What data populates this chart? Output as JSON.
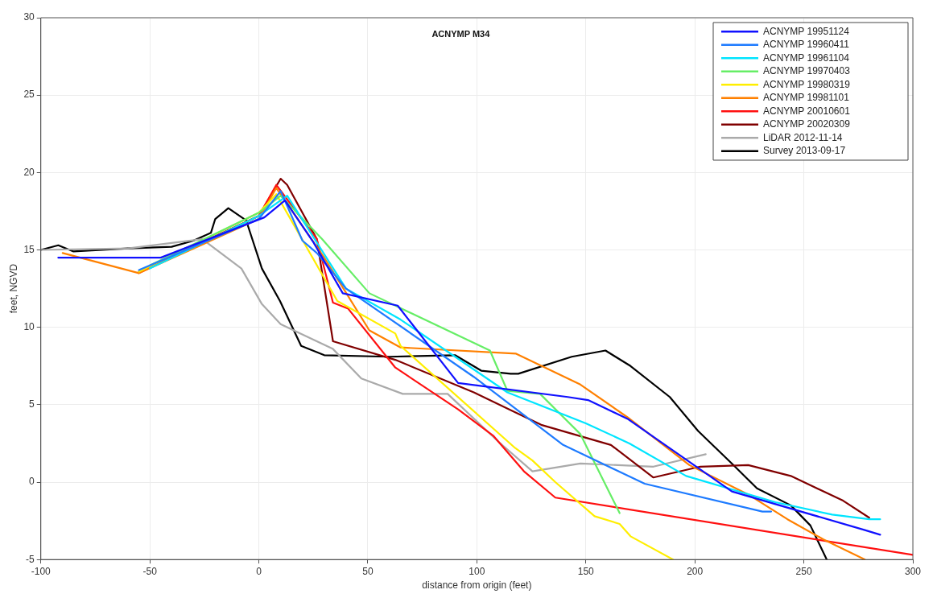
{
  "chart_data": {
    "type": "line",
    "title": "ACNYMP M34",
    "xlabel": "distance from origin (feet)",
    "ylabel": "feet, NGVD",
    "xlim": [
      -100,
      300
    ],
    "xticks": [
      -100,
      -50,
      0,
      50,
      100,
      150,
      200,
      250,
      300
    ],
    "ylim": [
      -5,
      30
    ],
    "yticks": [
      -5,
      0,
      5,
      10,
      15,
      20,
      25,
      30
    ],
    "grid": true,
    "legend": "top right",
    "marker": "none",
    "line_style": "solid",
    "series": [
      {
        "name": "ACNYMP 19951124",
        "color": "#1010ff",
        "x": [
          -92,
          -45,
          2.5,
          12,
          25,
          38.5,
          63.7,
          91.4,
          141.7,
          151,
          169,
          217,
          278,
          285
        ],
        "values": [
          14.5,
          14.5,
          17.1,
          18.2,
          15.5,
          12.2,
          11.4,
          6.4,
          5.5,
          5.3,
          4.1,
          -0.6,
          -3.1,
          -3.4
        ]
      },
      {
        "name": "ACNYMP 19960411",
        "color": "#1e7bff",
        "x": [
          -55,
          0,
          10,
          20,
          26.6,
          40,
          98.6,
          139.6,
          177,
          231,
          235
        ],
        "values": [
          13.7,
          17,
          18.8,
          15.6,
          14.8,
          12.5,
          6.8,
          2.4,
          -0.1,
          -1.9,
          -1.9
        ]
      },
      {
        "name": "ACNYMP 19961104",
        "color": "#00e5ff",
        "x": [
          -50,
          0,
          13,
          40,
          65,
          114,
          150,
          170,
          196,
          237,
          263,
          280,
          285
        ],
        "values": [
          13.8,
          17.2,
          18.5,
          12.5,
          10.5,
          5.8,
          3.8,
          2.5,
          0.4,
          -1.3,
          -2.1,
          -2.4,
          -2.4
        ]
      },
      {
        "name": "ACNYMP 19970403",
        "color": "#66ee66",
        "x": [
          -50,
          0,
          10,
          29,
          50.7,
          106,
          114,
          129,
          147.5,
          165.5
        ],
        "values": [
          14,
          17.4,
          18.5,
          15.7,
          12.2,
          8.5,
          5.9,
          5.7,
          3.1,
          -2.0
        ]
      },
      {
        "name": "ACNYMP 19980319",
        "color": "#ffee00",
        "x": [
          -55,
          0,
          8,
          36,
          62.6,
          65,
          117.6,
          125.5,
          136,
          154,
          165.5,
          170.5,
          190
        ],
        "values": [
          13.6,
          17.4,
          18.6,
          11.7,
          9.6,
          8.8,
          2.2,
          1.4,
          0.0,
          -2.2,
          -2.7,
          -3.5,
          -5
        ]
      },
      {
        "name": "ACNYMP 19981101",
        "color": "#ff8000",
        "x": [
          -90,
          -55,
          0,
          8,
          30,
          50.7,
          65,
          118,
          147.5,
          169,
          197.5,
          224.5,
          242.5,
          259,
          278
        ],
        "values": [
          14.8,
          13.5,
          17,
          19,
          14.5,
          9.8,
          8.7,
          8.3,
          6.3,
          4.2,
          1.1,
          -0.8,
          -2.4,
          -3.7,
          -5
        ]
      },
      {
        "name": "ACNYMP 20010601",
        "color": "#ff1010",
        "x": [
          -55,
          0,
          8,
          26.6,
          34,
          41,
          62.6,
          91.4,
          107.5,
          121.6,
          136,
          300
        ],
        "values": [
          13.5,
          17.2,
          19.2,
          15.7,
          11.6,
          11.2,
          7.4,
          4.7,
          3.0,
          0.7,
          -1.0,
          -4.7
        ]
      },
      {
        "name": "ACNYMP 20020309",
        "color": "#800000",
        "x": [
          -55,
          0,
          10,
          13,
          26.6,
          34,
          62.6,
          98.6,
          129.5,
          161.5,
          181,
          202.5,
          224.5,
          244,
          268,
          280
        ],
        "values": [
          13.6,
          17.2,
          19.6,
          19.2,
          15.7,
          9.1,
          7.9,
          5.8,
          3.7,
          2.4,
          0.3,
          1.0,
          1.1,
          0.4,
          -1.2,
          -2.3
        ]
      },
      {
        "name": "LiDAR 2012-11-14",
        "color": "#aaaaaa",
        "x": [
          -100,
          -60,
          -26,
          -8,
          1.4,
          10,
          16,
          34,
          47,
          66,
          86.6,
          110,
          125.5,
          147.5,
          181,
          205
        ],
        "values": [
          15.0,
          15.1,
          15.7,
          13.8,
          11.5,
          10.2,
          9.8,
          8.6,
          6.7,
          5.7,
          5.7,
          2.6,
          0.7,
          1.2,
          1.0,
          1.8
        ]
      },
      {
        "name": "Survey 2013-09-17",
        "color": "#000000",
        "x": [
          -100,
          -92,
          -85,
          -60,
          -40,
          -30,
          -22,
          -20,
          -14,
          -5.8,
          1.4,
          9.7,
          19.4,
          30,
          60,
          90,
          102,
          115.5,
          119,
          143.5,
          159,
          170.5,
          188.5,
          201.5,
          217,
          228.5,
          244,
          253,
          260.5
        ],
        "values": [
          15,
          15.3,
          14.9,
          15.1,
          15.2,
          15.6,
          16.1,
          17,
          17.7,
          16.9,
          13.8,
          11.7,
          8.8,
          8.2,
          8.1,
          8.2,
          7.2,
          7.0,
          7.0,
          8.1,
          8.5,
          7.5,
          5.5,
          3.3,
          1.2,
          -0.4,
          -1.5,
          -2.8,
          -5.0
        ]
      }
    ]
  }
}
